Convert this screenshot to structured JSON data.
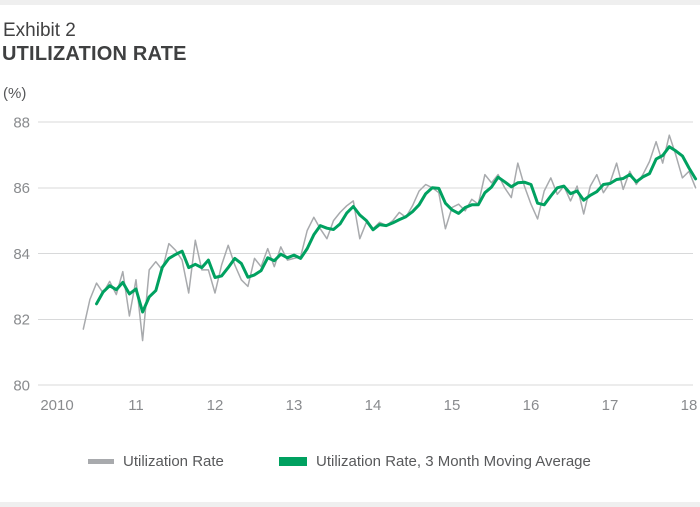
{
  "header": {
    "exhibit_label": "Exhibit 2",
    "title": "UTILIZATION RATE",
    "unit_label": "(%)"
  },
  "colors": {
    "top_bar": "#efefef",
    "title_text": "#3f4041",
    "axis_text": "#898b8e",
    "gridline": "#d8d9da",
    "gray_series": "#a8aaad",
    "green_series": "#00a160",
    "legend_text": "#58595b"
  },
  "legend": {
    "items": [
      {
        "label": "Utilization Rate",
        "color": "#a8aaad"
      },
      {
        "label": "Utilization Rate, 3 Month Moving Average",
        "color": "#00a160"
      }
    ]
  },
  "chart_data": {
    "type": "line",
    "title": "UTILIZATION RATE",
    "ylabel": "(%)",
    "xlabel": "",
    "grid": "horizontal-only",
    "legend_position": "bottom",
    "ylim": [
      80,
      88
    ],
    "y_ticks": [
      80,
      82,
      84,
      86,
      88
    ],
    "x_ticks": [
      {
        "label": "2010",
        "year": 2010
      },
      {
        "label": "11",
        "year": 2011
      },
      {
        "label": "12",
        "year": 2012
      },
      {
        "label": "13",
        "year": 2013
      },
      {
        "label": "14",
        "year": 2014
      },
      {
        "label": "15",
        "year": 2015
      },
      {
        "label": "16",
        "year": 2016
      },
      {
        "label": "17",
        "year": 2017
      },
      {
        "label": "18",
        "year": 2018
      }
    ],
    "series": [
      {
        "name": "Utilization Rate",
        "color": "#a8aaad",
        "stroke_width": 1.5,
        "start": "2010-05",
        "frequency": "monthly",
        "values": [
          81.7,
          82.6,
          83.1,
          82.8,
          83.15,
          82.75,
          83.45,
          82.1,
          83.2,
          81.35,
          83.5,
          83.75,
          83.5,
          84.3,
          84.1,
          83.8,
          82.8,
          84.4,
          83.5,
          83.5,
          82.8,
          83.65,
          84.25,
          83.65,
          83.2,
          83.0,
          83.85,
          83.6,
          84.15,
          83.6,
          84.2,
          83.8,
          83.85,
          83.9,
          84.7,
          85.1,
          84.75,
          84.45,
          85.0,
          85.25,
          85.45,
          85.6,
          84.45,
          84.95,
          84.75,
          84.95,
          84.85,
          85.0,
          85.25,
          85.1,
          85.45,
          85.9,
          86.1,
          86.0,
          85.85,
          84.75,
          85.4,
          85.5,
          85.3,
          85.65,
          85.5,
          86.4,
          86.15,
          86.4,
          86.0,
          85.7,
          86.75,
          86.05,
          85.5,
          85.05,
          85.9,
          86.3,
          85.8,
          86.05,
          85.6,
          86.05,
          85.2,
          86.05,
          86.4,
          85.85,
          86.15,
          86.75,
          85.95,
          86.5,
          86.1,
          86.4,
          86.8,
          87.4,
          86.75,
          87.6,
          87.0,
          86.3,
          86.5,
          86.0
        ]
      },
      {
        "name": "Utilization Rate, 3 Month Moving Average",
        "color": "#00a160",
        "stroke_width": 3,
        "start": "2010-07",
        "frequency": "monthly",
        "values": [
          82.47,
          82.83,
          83.02,
          82.9,
          83.12,
          82.77,
          82.92,
          82.22,
          82.68,
          82.87,
          83.58,
          83.85,
          83.97,
          84.07,
          83.57,
          83.67,
          83.57,
          83.8,
          83.27,
          83.32,
          83.57,
          83.85,
          83.7,
          83.28,
          83.35,
          83.48,
          83.87,
          83.78,
          83.98,
          83.87,
          83.95,
          83.85,
          84.15,
          84.57,
          84.85,
          84.77,
          84.73,
          84.9,
          85.23,
          85.43,
          85.17,
          85.0,
          84.72,
          84.88,
          84.85,
          84.93,
          85.03,
          85.12,
          85.27,
          85.48,
          85.82,
          86.0,
          85.98,
          85.53,
          85.33,
          85.22,
          85.4,
          85.48,
          85.48,
          85.85,
          86.02,
          86.32,
          86.18,
          86.03,
          86.15,
          86.17,
          86.1,
          85.53,
          85.48,
          85.75,
          86.0,
          86.05,
          85.82,
          85.9,
          85.62,
          85.77,
          85.88,
          86.1,
          86.13,
          86.25,
          86.28,
          86.4,
          86.18,
          86.33,
          86.43,
          86.87,
          86.98,
          87.25,
          87.12,
          86.97,
          86.6,
          86.27
        ]
      }
    ]
  }
}
